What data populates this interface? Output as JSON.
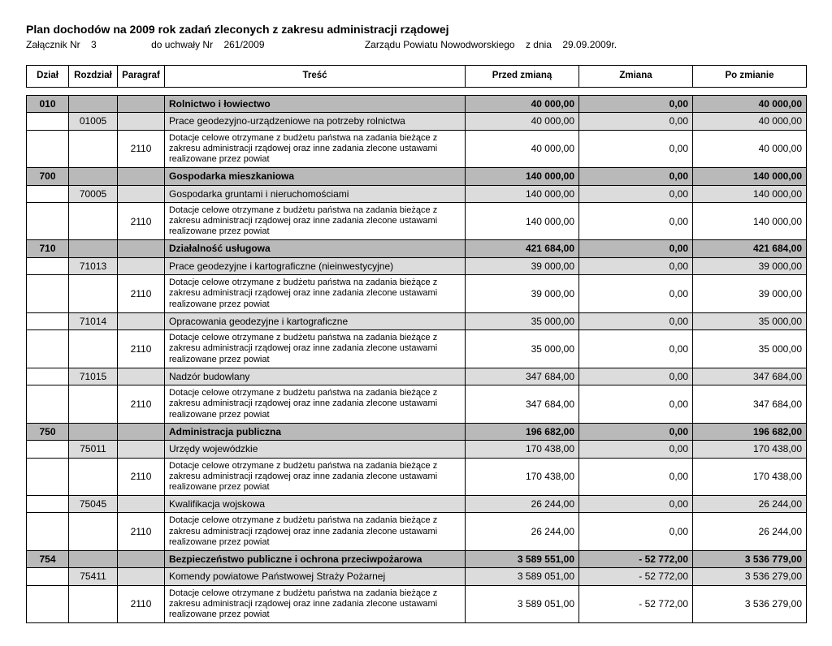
{
  "header": {
    "title": "Plan dochodów na 2009 rok zadań zleconych z zakresu administracji rządowej",
    "zalacznik_label": "Załącznik Nr",
    "zalacznik_nr": "3",
    "do_uchwaly_label": "do uchwały Nr",
    "uchwala_nr": "261/2009",
    "zarzad": "Zarządu Powiatu Nowodworskiego",
    "zdnia_label": "z dnia",
    "zdnia": "29.09.2009r."
  },
  "columns": {
    "dzial": "Dział",
    "rozdzial": "Rozdział",
    "paragraf": "Paragraf",
    "tresc": "Treść",
    "przed": "Przed zmianą",
    "zmiana": "Zmiana",
    "po": "Po zmianie"
  },
  "dotacja_text": "Dotacje celowe otrzymane z budżetu państwa na zadania bieżące z zakresu administracji rządowej oraz inne zadania zlecone ustawami realizowane przez powiat",
  "rows": [
    {
      "type": "dzial",
      "dzial": "010",
      "tresc": "Rolnictwo i łowiectwo",
      "przed": "40 000,00",
      "zmiana": "0,00",
      "po": "40 000,00"
    },
    {
      "type": "rozdzial",
      "rozdzial": "01005",
      "tresc": "Prace geodezyjno-urządzeniowe na potrzeby rolnictwa",
      "przed": "40 000,00",
      "zmiana": "0,00",
      "po": "40 000,00"
    },
    {
      "type": "para",
      "paragraf": "2110",
      "tresc": "@dotacja",
      "przed": "40 000,00",
      "zmiana": "0,00",
      "po": "40 000,00"
    },
    {
      "type": "dzial",
      "dzial": "700",
      "tresc": "Gospodarka mieszkaniowa",
      "przed": "140 000,00",
      "zmiana": "0,00",
      "po": "140 000,00"
    },
    {
      "type": "rozdzial",
      "rozdzial": "70005",
      "tresc": "Gospodarka gruntami i nieruchomościami",
      "przed": "140 000,00",
      "zmiana": "0,00",
      "po": "140 000,00"
    },
    {
      "type": "para",
      "paragraf": "2110",
      "tresc": "@dotacja",
      "przed": "140 000,00",
      "zmiana": "0,00",
      "po": "140 000,00"
    },
    {
      "type": "dzial",
      "dzial": "710",
      "tresc": "Działalność usługowa",
      "przed": "421 684,00",
      "zmiana": "0,00",
      "po": "421 684,00"
    },
    {
      "type": "rozdzial",
      "rozdzial": "71013",
      "tresc": "Prace geodezyjne i kartograficzne (nieinwestycyjne)",
      "przed": "39 000,00",
      "zmiana": "0,00",
      "po": "39 000,00"
    },
    {
      "type": "para",
      "paragraf": "2110",
      "tresc": "@dotacja",
      "przed": "39 000,00",
      "zmiana": "0,00",
      "po": "39 000,00"
    },
    {
      "type": "rozdzial",
      "rozdzial": "71014",
      "tresc": "Opracowania geodezyjne i kartograficzne",
      "przed": "35 000,00",
      "zmiana": "0,00",
      "po": "35 000,00"
    },
    {
      "type": "para",
      "paragraf": "2110",
      "tresc": "@dotacja",
      "przed": "35 000,00",
      "zmiana": "0,00",
      "po": "35 000,00"
    },
    {
      "type": "rozdzial",
      "rozdzial": "71015",
      "tresc": "Nadzór budowlany",
      "przed": "347 684,00",
      "zmiana": "0,00",
      "po": "347 684,00"
    },
    {
      "type": "para",
      "paragraf": "2110",
      "tresc": "@dotacja",
      "przed": "347 684,00",
      "zmiana": "0,00",
      "po": "347 684,00"
    },
    {
      "type": "dzial",
      "dzial": "750",
      "tresc": "Administracja publiczna",
      "przed": "196 682,00",
      "zmiana": "0,00",
      "po": "196 682,00"
    },
    {
      "type": "rozdzial",
      "rozdzial": "75011",
      "tresc": "Urzędy wojewódzkie",
      "przed": "170 438,00",
      "zmiana": "0,00",
      "po": "170 438,00"
    },
    {
      "type": "para",
      "paragraf": "2110",
      "tresc": "@dotacja",
      "przed": "170 438,00",
      "zmiana": "0,00",
      "po": "170 438,00"
    },
    {
      "type": "rozdzial",
      "rozdzial": "75045",
      "tresc": "Kwalifikacja wojskowa",
      "przed": "26 244,00",
      "zmiana": "0,00",
      "po": "26 244,00"
    },
    {
      "type": "para",
      "paragraf": "2110",
      "tresc": "@dotacja",
      "przed": "26 244,00",
      "zmiana": "0,00",
      "po": "26 244,00"
    },
    {
      "type": "dzial",
      "dzial": "754",
      "tresc": "Bezpieczeństwo publiczne i ochrona przeciwpożarowa",
      "przed": "3 589 551,00",
      "zmiana": "- 52 772,00",
      "po": "3 536 779,00"
    },
    {
      "type": "rozdzial",
      "rozdzial": "75411",
      "tresc": "Komendy powiatowe Państwowej Straży Pożarnej",
      "przed": "3 589 051,00",
      "zmiana": "- 52 772,00",
      "po": "3 536 279,00"
    },
    {
      "type": "para",
      "paragraf": "2110",
      "tresc": "@dotacja",
      "przed": "3 589 051,00",
      "zmiana": "- 52 772,00",
      "po": "3 536 279,00"
    }
  ]
}
